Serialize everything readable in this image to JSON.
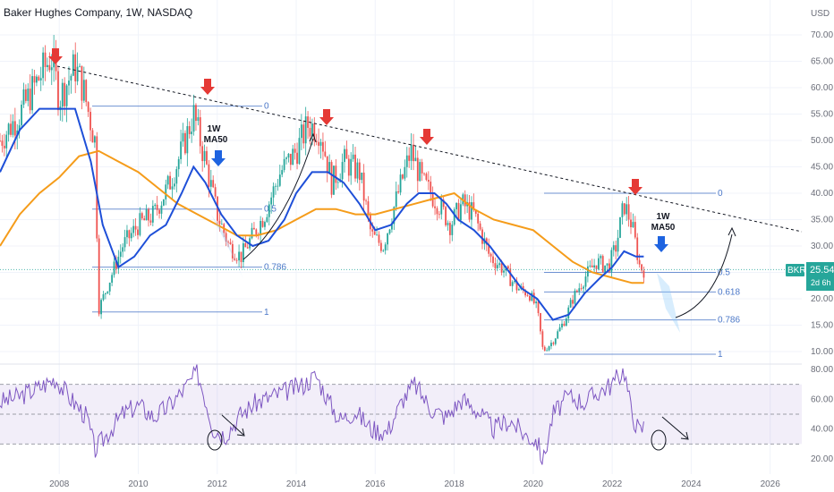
{
  "header": {
    "title": "Baker Hughes Company, 1W, NASDAQ"
  },
  "price_axis": {
    "unit": "USD",
    "ticks": [
      "70.00",
      "65.00",
      "60.00",
      "55.00",
      "50.00",
      "45.00",
      "40.00",
      "35.00",
      "30.00",
      "25.00",
      "20.00",
      "15.00",
      "10.00"
    ]
  },
  "rsi_axis": {
    "ticks": [
      "80.00",
      "60.00",
      "40.00",
      "20.00"
    ]
  },
  "time_axis": {
    "ticks": [
      "2008",
      "2010",
      "2012",
      "2014",
      "2016",
      "2018",
      "2020",
      "2022",
      "2024",
      "2026"
    ]
  },
  "badges": {
    "symbol": "BKR",
    "price": "25.54",
    "countdown": "2d 6h"
  },
  "fib_sets": [
    {
      "levels": [
        {
          "label": "0",
          "value": 56.5
        },
        {
          "label": "0.5",
          "value": 37.0
        },
        {
          "label": "0.786",
          "value": 26.0
        },
        {
          "label": "1",
          "value": 17.5
        }
      ]
    },
    {
      "levels": [
        {
          "label": "0",
          "value": 40.0
        },
        {
          "label": "0.5",
          "value": 25.0
        },
        {
          "label": "0.618",
          "value": 21.3
        },
        {
          "label": "0.786",
          "value": 16.0
        },
        {
          "label": "1",
          "value": 9.5
        }
      ]
    }
  ],
  "annotations": [
    {
      "label": "1W",
      "sub": "MA50"
    },
    {
      "label": "1W",
      "sub": "MA50"
    }
  ],
  "colors": {
    "price_up": "#26a69a",
    "price_down": "#ef5350",
    "ma50": "#1e4fd8",
    "ma200": "#f59c1a",
    "rsi": "#7e57c2",
    "fib": "#4c78c8",
    "red_arrow": "#e53935",
    "blue_arrow": "#1e63e0"
  },
  "chart_data": [
    {
      "type": "line",
      "title": "Baker Hughes Company, 1W, NASDAQ",
      "xlabel": "",
      "ylabel": "USD",
      "ylim": [
        8,
        73
      ],
      "xlim": [
        2006.5,
        2026.8
      ],
      "series": [
        {
          "name": "",
          "role": "price",
          "x": [
            2006.5,
            2007.0,
            2007.5,
            2007.8,
            2008.0,
            2008.4,
            2008.6,
            2008.9,
            2009.0,
            2009.3,
            2009.6,
            2010.0,
            2010.4,
            2010.8,
            2011.1,
            2011.4,
            2011.7,
            2012.0,
            2012.3,
            2012.6,
            2012.9,
            2013.2,
            2013.6,
            2014.0,
            2014.3,
            2014.6,
            2014.9,
            2015.2,
            2015.6,
            2015.9,
            2016.2,
            2016.5,
            2016.9,
            2017.2,
            2017.6,
            2017.9,
            2018.2,
            2018.5,
            2018.9,
            2019.2,
            2019.6,
            2019.9,
            2020.1,
            2020.25,
            2020.5,
            2020.8,
            2021.0,
            2021.3,
            2021.6,
            2021.9,
            2022.1,
            2022.3,
            2022.5,
            2022.7,
            2022.8
          ],
          "y": [
            50,
            55,
            62,
            66,
            58,
            64,
            60,
            50,
            18,
            24,
            30,
            34,
            36,
            42,
            48,
            55,
            46,
            36,
            30,
            28,
            32,
            36,
            44,
            48,
            53,
            52,
            42,
            46,
            44,
            32,
            30,
            38,
            48,
            42,
            38,
            34,
            38,
            36,
            28,
            26,
            22,
            21,
            18,
            10,
            12,
            16,
            20,
            24,
            27,
            26,
            30,
            38,
            34,
            26,
            25.5
          ]
        },
        {
          "name": "",
          "role": "ma50",
          "x": [
            2006.5,
            2007.0,
            2007.5,
            2008.0,
            2008.4,
            2008.8,
            2009.1,
            2009.5,
            2009.9,
            2010.3,
            2010.7,
            2011.1,
            2011.4,
            2011.7,
            2012.1,
            2012.5,
            2012.9,
            2013.3,
            2013.7,
            2014.0,
            2014.4,
            2014.8,
            2015.2,
            2015.6,
            2016.0,
            2016.4,
            2016.8,
            2017.1,
            2017.5,
            2017.8,
            2018.1,
            2018.5,
            2018.9,
            2019.3,
            2019.7,
            2020.1,
            2020.5,
            2020.9,
            2021.3,
            2021.7,
            2022.0,
            2022.3,
            2022.6,
            2022.8
          ],
          "y": [
            44,
            52,
            56,
            56,
            56,
            46,
            34,
            26,
            28,
            32,
            34,
            40,
            45,
            42,
            36,
            32,
            30,
            31,
            35,
            40,
            44,
            44,
            42,
            38,
            33,
            34,
            38,
            40,
            40,
            38,
            35,
            33,
            30,
            26,
            22,
            20,
            16,
            17,
            21,
            24,
            26,
            29,
            28,
            28
          ]
        },
        {
          "name": "",
          "role": "ma200",
          "x": [
            2006.5,
            2007.0,
            2007.5,
            2008.0,
            2008.5,
            2009.0,
            2009.5,
            2010.0,
            2010.5,
            2011.0,
            2011.5,
            2012.0,
            2012.5,
            2013.0,
            2013.5,
            2014.0,
            2014.5,
            2015.0,
            2015.5,
            2016.0,
            2016.5,
            2017.0,
            2017.5,
            2018.0,
            2018.5,
            2019.0,
            2019.5,
            2020.0,
            2020.5,
            2021.0,
            2021.5,
            2022.0,
            2022.5,
            2022.8
          ],
          "y": [
            30,
            36,
            40,
            43,
            47,
            48,
            46,
            44,
            41,
            38,
            36,
            34,
            32,
            32,
            33,
            35,
            37,
            37,
            36,
            36,
            37,
            38,
            39,
            40,
            37,
            35,
            34,
            33,
            30,
            27,
            25,
            24,
            23,
            23
          ]
        }
      ]
    },
    {
      "type": "line",
      "title": "",
      "xlabel": "",
      "ylabel": "",
      "ylim": [
        15,
        85
      ],
      "xlim": [
        2006.5,
        2026.8
      ],
      "series": [
        {
          "name": "",
          "role": "rsi",
          "x": [
            2006.5,
            2007.0,
            2007.5,
            2007.9,
            2008.3,
            2008.7,
            2008.9,
            2009.2,
            2009.6,
            2010.0,
            2010.4,
            2010.8,
            2011.2,
            2011.5,
            2011.7,
            2011.9,
            2012.2,
            2012.6,
            2013.0,
            2013.4,
            2013.8,
            2014.2,
            2014.5,
            2014.8,
            2015.1,
            2015.5,
            2015.9,
            2016.3,
            2016.7,
            2017.0,
            2017.4,
            2017.8,
            2018.2,
            2018.6,
            2019.0,
            2019.4,
            2019.8,
            2020.1,
            2020.25,
            2020.5,
            2020.9,
            2021.3,
            2021.7,
            2022.0,
            2022.3,
            2022.5,
            2022.7,
            2022.8
          ],
          "y": [
            58,
            62,
            68,
            74,
            60,
            48,
            26,
            36,
            50,
            56,
            48,
            56,
            68,
            78,
            60,
            40,
            36,
            50,
            58,
            62,
            66,
            70,
            76,
            60,
            46,
            52,
            40,
            38,
            60,
            70,
            54,
            48,
            60,
            52,
            40,
            46,
            36,
            32,
            18,
            50,
            62,
            58,
            66,
            70,
            80,
            50,
            38,
            42
          ]
        }
      ]
    }
  ]
}
